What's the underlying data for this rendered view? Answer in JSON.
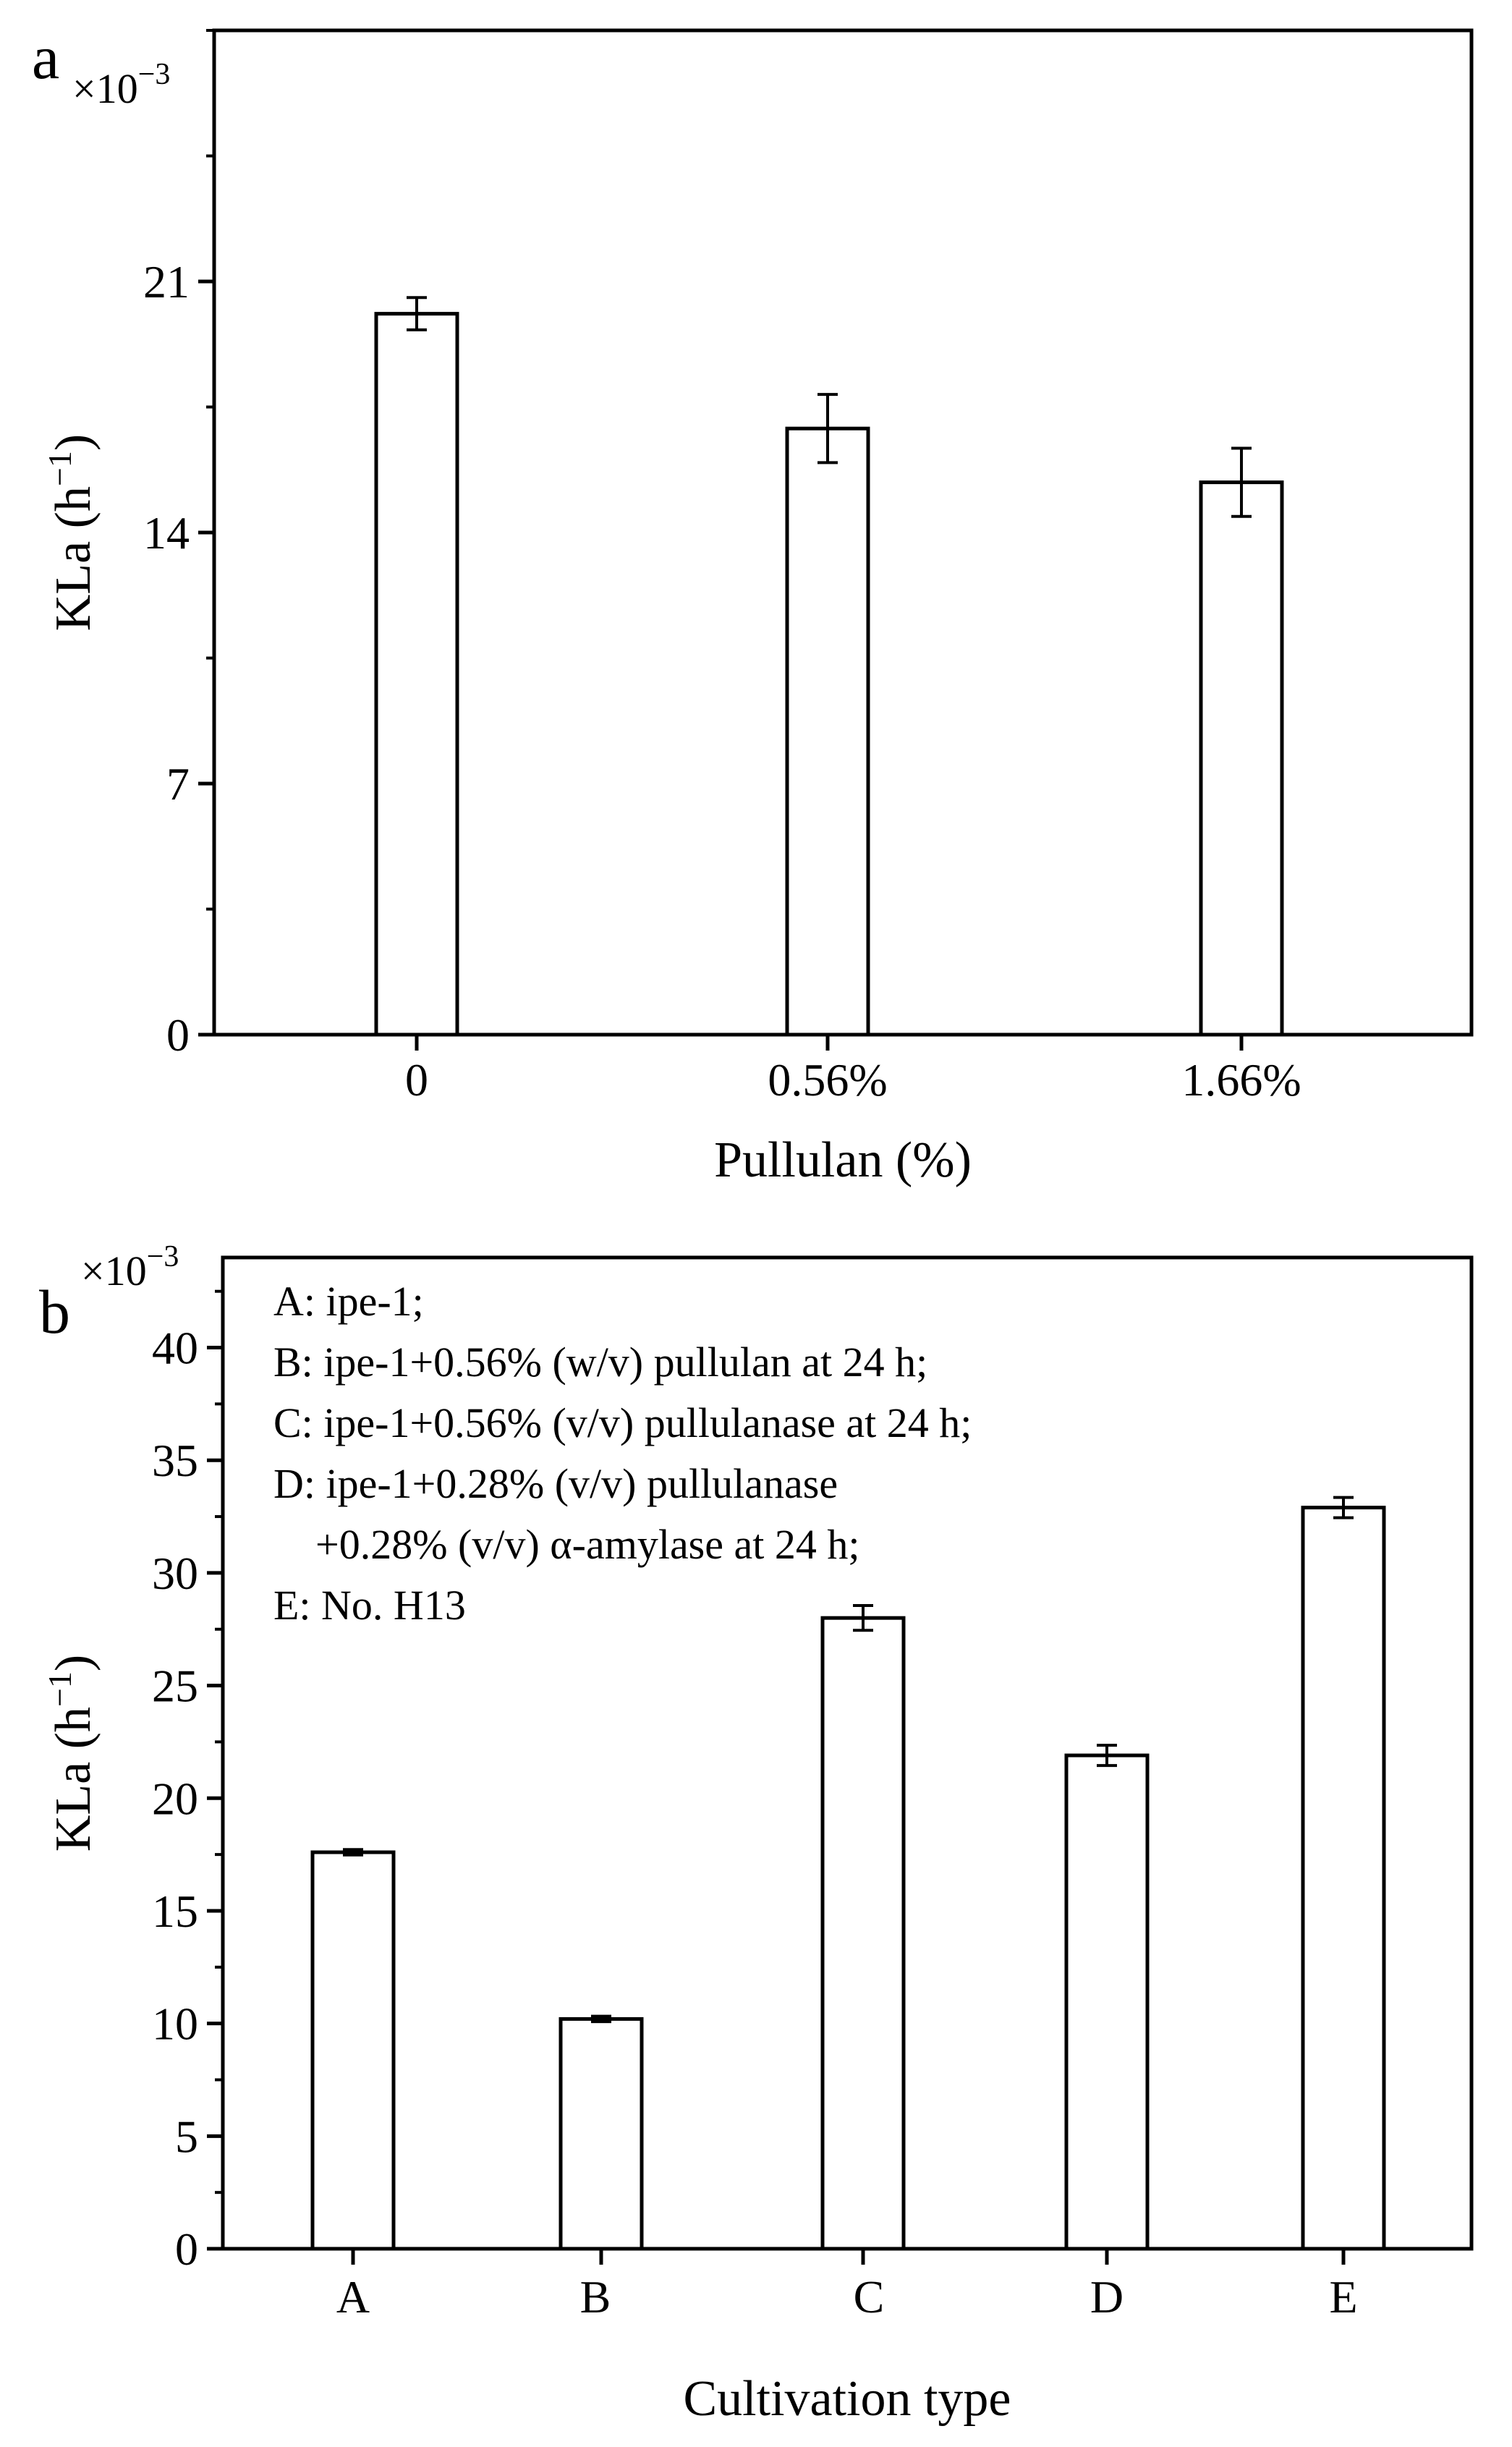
{
  "chart_data": [
    {
      "type": "bar",
      "panel_label": "a",
      "exponent_label": "×10",
      "exponent_sup": "−3",
      "categories": [
        "0",
        "0.56%",
        "1.66%"
      ],
      "values": [
        20.1,
        16.9,
        15.4
      ],
      "errors": [
        0.45,
        0.95,
        0.95
      ],
      "xlabel": "Pullulan (%)",
      "ylabel": "KLa (h",
      "ylabel_sup": "−1",
      "ylabel_close": ")",
      "ylim": [
        0,
        28
      ],
      "yticks": [
        0,
        7,
        14,
        21
      ],
      "yminor_step": 3.5,
      "legend_lines": [],
      "grid": false
    },
    {
      "type": "bar",
      "panel_label": "b",
      "exponent_label": "×10",
      "exponent_sup": "−3",
      "categories": [
        "A",
        "B",
        "C",
        "D",
        "E"
      ],
      "values": [
        17.6,
        10.2,
        28.0,
        21.9,
        32.9
      ],
      "errors": [
        0.12,
        0.12,
        0.55,
        0.45,
        0.45
      ],
      "xlabel": "Cultivation type",
      "ylabel": "KLa (h",
      "ylabel_sup": "−1",
      "ylabel_close": ")",
      "ylim": [
        0,
        44
      ],
      "yticks": [
        0,
        5,
        10,
        15,
        20,
        25,
        30,
        35,
        40
      ],
      "yminor_step": 2.5,
      "legend_lines": [
        "A: ipe-1;",
        "B: ipe-1+0.56% (w/v) pullulan at 24 h;",
        "C: ipe-1+0.56% (v/v) pullulanase at 24 h;",
        "D: ipe-1+0.28% (v/v) pullulanase",
        "    +0.28% (v/v) α-amylase at 24 h;",
        "E: No. H13"
      ],
      "grid": false
    }
  ]
}
